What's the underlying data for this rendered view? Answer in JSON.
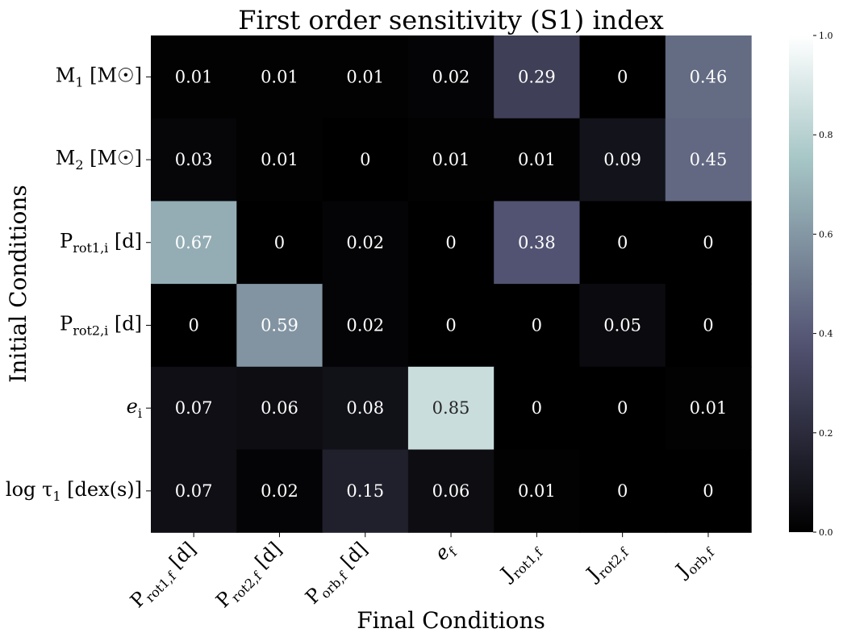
{
  "chart_data": {
    "type": "heatmap",
    "title": "First order sensitivity (S1) index",
    "xlabel": "Final Conditions",
    "ylabel": "Initial Conditions",
    "x_categories": [
      {
        "main": "P",
        "sub": "rot1,f",
        "suffix": " [d]"
      },
      {
        "main": "P",
        "sub": "rot2,f",
        "suffix": " [d]"
      },
      {
        "main": "P",
        "sub": "orb,f",
        "suffix": " [d]"
      },
      {
        "main": "e",
        "sub": "f",
        "suffix": "",
        "italic": true
      },
      {
        "main": "J",
        "sub": "rot1,f",
        "suffix": ""
      },
      {
        "main": "J",
        "sub": "rot2,f",
        "suffix": ""
      },
      {
        "main": "J",
        "sub": "orb,f",
        "suffix": ""
      }
    ],
    "y_categories": [
      {
        "main": "M",
        "sub": "1",
        "suffix": " [M☉]"
      },
      {
        "main": "M",
        "sub": "2",
        "suffix": " [M☉]"
      },
      {
        "main": "P",
        "sub": "rot1,i",
        "suffix": " [d]"
      },
      {
        "main": "P",
        "sub": "rot2,i",
        "suffix": " [d]"
      },
      {
        "main": "e",
        "sub": "i",
        "suffix": "",
        "italic": true
      },
      {
        "main": "log τ",
        "sub": "1",
        "suffix": " [dex(s)]"
      }
    ],
    "values": [
      [
        0.01,
        0.01,
        0.01,
        0.02,
        0.29,
        0,
        0.46
      ],
      [
        0.03,
        0.01,
        0,
        0.01,
        0.01,
        0.09,
        0.45
      ],
      [
        0.67,
        0,
        0.02,
        0,
        0.38,
        0,
        0
      ],
      [
        0,
        0.59,
        0.02,
        0,
        0,
        0.05,
        0
      ],
      [
        0.07,
        0.06,
        0.08,
        0.85,
        0,
        0,
        0.01
      ],
      [
        0.07,
        0.02,
        0.15,
        0.06,
        0.01,
        0,
        0
      ]
    ],
    "colorbar": {
      "range": [
        0,
        1
      ],
      "ticks": [
        "0.0",
        "0.2",
        "0.4",
        "0.6",
        "0.8",
        "1.0"
      ],
      "colormap": "bone"
    }
  }
}
